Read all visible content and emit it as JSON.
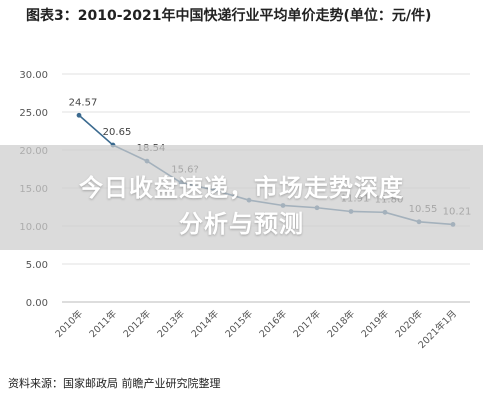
{
  "title": "图表3：2010-2021年中国快递行业平均单价走势(单位：元/件)",
  "banner": {
    "line1": "今日收盘速递，市场走势深度",
    "line2": "分析与预测"
  },
  "source": "资料来源：国家邮政局 前瞻产业研究院整理",
  "chart_data": {
    "type": "line",
    "categories": [
      "2010年",
      "2011年",
      "2012年",
      "2013年",
      "2014年",
      "2015年",
      "2016年",
      "2017年",
      "2018年",
      "2019年",
      "2020年",
      "2021年1月"
    ],
    "series": [
      {
        "values": [
          24.57,
          20.65,
          18.54,
          15.7,
          14.7,
          13.4,
          12.7,
          12.4,
          11.91,
          11.8,
          10.55,
          10.21
        ]
      }
    ],
    "data_labels": [
      "24.57",
      "20.65",
      "18.54",
      "15.6?",
      "",
      "",
      "",
      "",
      "11.91",
      "11.80",
      "10.55",
      "10.21"
    ],
    "yticks": [
      "30.00",
      "25.00",
      "20.00",
      "15.00",
      "10.00",
      "5.00",
      "0.00"
    ],
    "ylim": [
      0,
      30
    ],
    "grid": true,
    "line_color": "#3b6a8f"
  }
}
